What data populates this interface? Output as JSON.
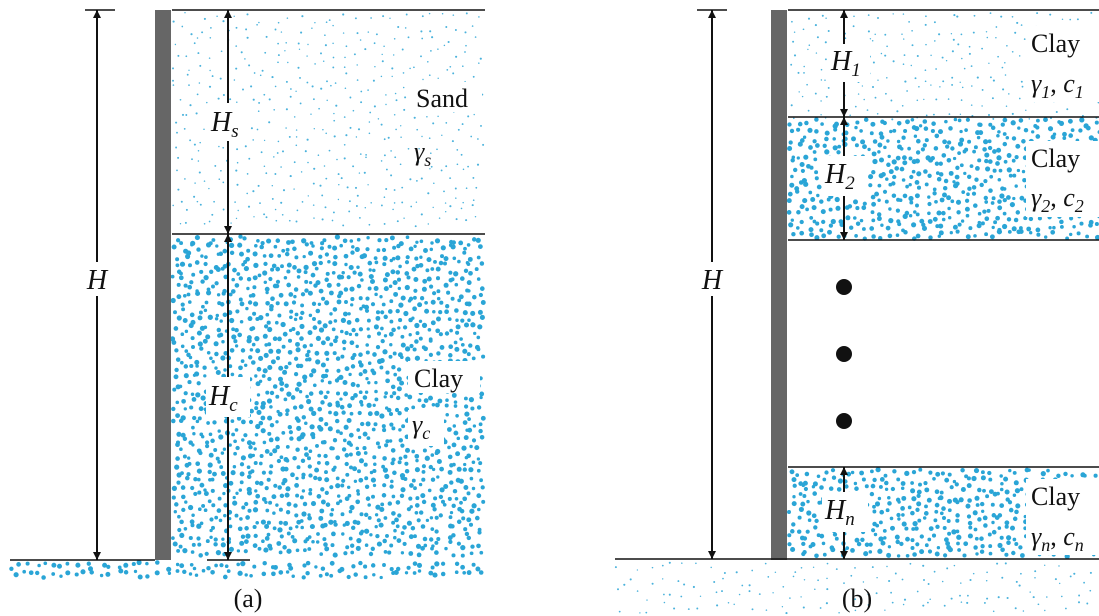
{
  "palette": {
    "soil_dots": "#2aa5d6",
    "wall": "#666666",
    "ink": "#111111",
    "background": "#ffffff"
  },
  "panel_a": {
    "caption": "(a)",
    "total_height_label": "H",
    "sand": {
      "name": "Sand",
      "unit_weight": "γ",
      "unit_weight_sub": "s",
      "thickness": "H",
      "thickness_sub": "s"
    },
    "clay": {
      "name": "Clay",
      "unit_weight": "γ",
      "unit_weight_sub": "c",
      "thickness": "H",
      "thickness_sub": "c"
    }
  },
  "panel_b": {
    "caption": "(b)",
    "total_height_label": "H",
    "layers": [
      {
        "name": "Clay",
        "gamma": "γ",
        "gamma_sub": "1",
        "sep": ", ",
        "cohesion": "c",
        "cohesion_sub": "1",
        "thickness": "H",
        "thickness_sub": "1"
      },
      {
        "name": "Clay",
        "gamma": "γ",
        "gamma_sub": "2",
        "sep": ", ",
        "cohesion": "c",
        "cohesion_sub": "2",
        "thickness": "H",
        "thickness_sub": "2"
      },
      {
        "name": "Clay",
        "gamma": "γ",
        "gamma_sub": "n",
        "sep": ", ",
        "cohesion": "c",
        "cohesion_sub": "n",
        "thickness": "H",
        "thickness_sub": "n"
      }
    ],
    "ellipsis_dots": 3
  }
}
